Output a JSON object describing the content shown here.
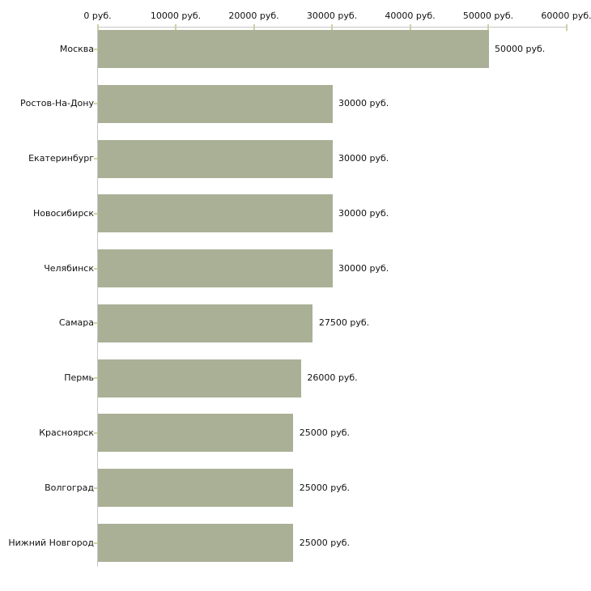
{
  "chart_data": {
    "type": "bar",
    "orientation": "horizontal",
    "title": "",
    "xlabel": "",
    "ylabel": "",
    "grid": false,
    "legend": false,
    "categories": [
      "Москва",
      "Ростов-На-Дону",
      "Екатеринбург",
      "Новосибирск",
      "Челябинск",
      "Самара",
      "Пермь",
      "Красноярск",
      "Волгоград",
      "Нижний Новгород"
    ],
    "values": [
      50000,
      30000,
      30000,
      30000,
      30000,
      27500,
      26000,
      25000,
      25000,
      25000
    ],
    "value_labels": [
      "50000 руб.",
      "30000 руб.",
      "30000 руб.",
      "30000 руб.",
      "30000 руб.",
      "27500 руб.",
      "26000 руб.",
      "25000 руб.",
      "25000 руб.",
      "25000 руб."
    ],
    "x_axis": {
      "position": "top",
      "min": 0,
      "max": 60000,
      "ticks": [
        0,
        10000,
        20000,
        30000,
        40000,
        50000,
        60000
      ],
      "tick_labels": [
        "0 руб.",
        "10000 руб.",
        "20000 руб.",
        "30000 руб.",
        "40000 руб.",
        "50000 руб.",
        "60000 руб."
      ]
    },
    "colors": {
      "bar": "#aab096",
      "axis_line": "#c6c6c6",
      "tick": "#cfd0a5",
      "text": "#111111",
      "background": "#ffffff"
    }
  }
}
